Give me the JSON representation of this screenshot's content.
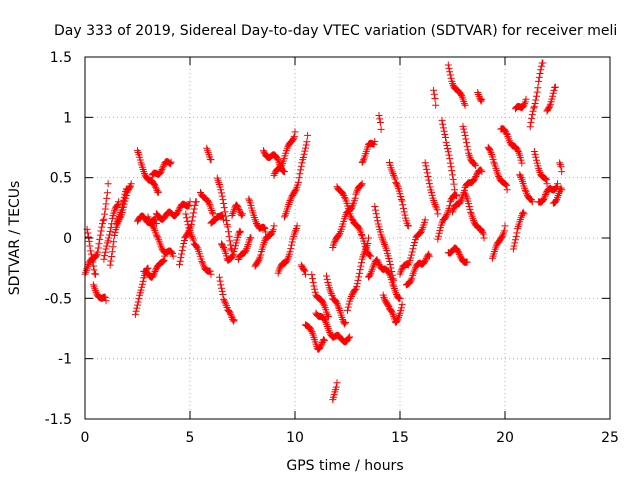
{
  "chart_data": {
    "type": "scatter",
    "title": "Day 333 of 2019, Sidereal Day-to-day VTEC variation (SDTVAR) for receiver meli",
    "xlabel": "GPS time / hours",
    "ylabel": "SDTVAR / TECUs",
    "xlim": [
      0,
      25
    ],
    "ylim": [
      -1.5,
      1.5
    ],
    "xticks": [
      0,
      5,
      10,
      15,
      20,
      25
    ],
    "yticks": [
      -1.5,
      -1,
      -0.5,
      0,
      0.5,
      1,
      1.5
    ],
    "xtick_labels": [
      "0",
      "5",
      "10",
      "15",
      "20",
      "25"
    ],
    "ytick_labels": [
      "-1.5",
      "-1",
      "-0.5",
      "0",
      "0.5",
      "1",
      "1.5"
    ],
    "grid": true,
    "marker": "+",
    "series_color": "#ff0000",
    "tracks": [
      [
        [
          0.0,
          -0.28
        ],
        [
          0.3,
          -0.2
        ],
        [
          0.6,
          -0.1
        ],
        [
          0.9,
          0.15
        ],
        [
          1.1,
          0.45
        ]
      ],
      [
        [
          0.1,
          0.05
        ],
        [
          0.3,
          -0.15
        ],
        [
          0.5,
          -0.3
        ]
      ],
      [
        [
          0.4,
          -0.4
        ],
        [
          0.6,
          -0.45
        ],
        [
          0.8,
          -0.5
        ],
        [
          1.0,
          -0.52
        ]
      ],
      [
        [
          0.9,
          -0.2
        ],
        [
          1.1,
          0.0
        ],
        [
          1.3,
          0.15
        ],
        [
          1.5,
          0.25
        ],
        [
          1.6,
          0.3
        ]
      ],
      [
        [
          1.2,
          -0.2
        ],
        [
          1.4,
          0.0
        ],
        [
          1.7,
          0.2
        ],
        [
          2.0,
          0.35
        ],
        [
          2.2,
          0.45
        ]
      ],
      [
        [
          1.5,
          0.1
        ],
        [
          1.8,
          0.3
        ],
        [
          2.0,
          0.4
        ]
      ],
      [
        [
          2.4,
          -0.65
        ],
        [
          2.6,
          -0.45
        ],
        [
          2.8,
          -0.35
        ],
        [
          3.0,
          -0.25
        ]
      ],
      [
        [
          2.5,
          0.7
        ],
        [
          2.7,
          0.6
        ],
        [
          3.0,
          0.5
        ],
        [
          3.3,
          0.42
        ],
        [
          3.5,
          0.38
        ]
      ],
      [
        [
          2.5,
          0.15
        ],
        [
          2.8,
          0.16
        ],
        [
          3.1,
          0.15
        ],
        [
          3.4,
          0.12
        ]
      ],
      [
        [
          2.8,
          -0.3
        ],
        [
          3.2,
          -0.3
        ],
        [
          3.5,
          -0.25
        ],
        [
          3.8,
          -0.15
        ]
      ],
      [
        [
          3.0,
          0.2
        ],
        [
          3.4,
          0.0
        ],
        [
          3.8,
          -0.1
        ],
        [
          4.2,
          -0.15
        ]
      ],
      [
        [
          3.2,
          0.5
        ],
        [
          3.5,
          0.55
        ],
        [
          3.8,
          0.6
        ],
        [
          4.1,
          0.63
        ]
      ],
      [
        [
          3.4,
          0.18
        ],
        [
          3.8,
          0.18
        ],
        [
          4.2,
          0.2
        ],
        [
          4.6,
          0.25
        ],
        [
          5.0,
          0.3
        ]
      ],
      [
        [
          4.5,
          -0.2
        ],
        [
          4.8,
          0.0
        ],
        [
          5.1,
          0.15
        ],
        [
          5.3,
          0.3
        ]
      ],
      [
        [
          4.8,
          0.2
        ],
        [
          5.2,
          -0.05
        ],
        [
          5.6,
          -0.2
        ],
        [
          6.0,
          -0.3
        ]
      ],
      [
        [
          5.5,
          0.4
        ],
        [
          5.8,
          0.3
        ],
        [
          6.1,
          0.2
        ]
      ],
      [
        [
          5.8,
          0.72
        ],
        [
          6.0,
          0.65
        ]
      ],
      [
        [
          6.0,
          0.1
        ],
        [
          6.3,
          0.2
        ],
        [
          6.6,
          0.15
        ]
      ],
      [
        [
          6.3,
          0.5
        ],
        [
          6.5,
          0.35
        ],
        [
          6.8,
          0.1
        ],
        [
          7.0,
          -0.1
        ]
      ],
      [
        [
          6.4,
          -0.3
        ],
        [
          6.6,
          -0.5
        ],
        [
          6.8,
          -0.62
        ],
        [
          7.1,
          -0.68
        ]
      ],
      [
        [
          6.5,
          -0.05
        ],
        [
          6.8,
          -0.2
        ],
        [
          7.1,
          -0.1
        ],
        [
          7.4,
          0.05
        ]
      ],
      [
        [
          7.0,
          0.2
        ],
        [
          7.2,
          0.25
        ],
        [
          7.5,
          0.2
        ]
      ],
      [
        [
          7.3,
          -0.2
        ],
        [
          7.6,
          -0.1
        ],
        [
          7.9,
          0.0
        ]
      ],
      [
        [
          7.8,
          0.3
        ],
        [
          8.0,
          0.2
        ],
        [
          8.3,
          0.1
        ],
        [
          8.6,
          0.05
        ]
      ],
      [
        [
          8.1,
          -0.25
        ],
        [
          8.4,
          -0.1
        ],
        [
          8.7,
          0.0
        ],
        [
          9.0,
          0.1
        ]
      ],
      [
        [
          8.5,
          0.72
        ],
        [
          8.8,
          0.68
        ],
        [
          9.2,
          0.65
        ],
        [
          9.5,
          0.55
        ]
      ],
      [
        [
          9.0,
          0.5
        ],
        [
          9.3,
          0.6
        ],
        [
          9.7,
          0.75
        ],
        [
          10.0,
          0.88
        ]
      ],
      [
        [
          9.2,
          -0.3
        ],
        [
          9.5,
          -0.2
        ],
        [
          9.8,
          -0.1
        ],
        [
          10.1,
          0.1
        ]
      ],
      [
        [
          9.5,
          0.2
        ],
        [
          9.8,
          0.3
        ],
        [
          10.2,
          0.5
        ],
        [
          10.4,
          0.65
        ],
        [
          10.6,
          0.85
        ]
      ],
      [
        [
          10.3,
          -0.2
        ],
        [
          10.5,
          -0.3
        ]
      ],
      [
        [
          10.5,
          -0.7
        ],
        [
          10.8,
          -0.8
        ],
        [
          11.1,
          -0.9
        ],
        [
          11.4,
          -0.85
        ]
      ],
      [
        [
          10.8,
          -0.3
        ],
        [
          11.0,
          -0.45
        ],
        [
          11.3,
          -0.55
        ],
        [
          11.6,
          -0.65
        ]
      ],
      [
        [
          11.0,
          -0.6
        ],
        [
          11.4,
          -0.7
        ],
        [
          11.8,
          -0.8
        ],
        [
          12.2,
          -0.85
        ],
        [
          12.6,
          -0.82
        ]
      ],
      [
        [
          11.5,
          -0.3
        ],
        [
          11.8,
          -0.5
        ],
        [
          12.1,
          -0.6
        ],
        [
          12.4,
          -0.7
        ]
      ],
      [
        [
          11.8,
          -1.33
        ],
        [
          11.9,
          -1.25
        ],
        [
          12.0,
          -1.2
        ]
      ],
      [
        [
          11.8,
          -0.1
        ],
        [
          12.1,
          0.05
        ],
        [
          12.5,
          0.2
        ],
        [
          12.9,
          0.35
        ],
        [
          13.2,
          0.45
        ]
      ],
      [
        [
          12.0,
          0.45
        ],
        [
          12.4,
          0.3
        ],
        [
          12.8,
          0.15
        ],
        [
          13.2,
          0.0
        ],
        [
          13.6,
          -0.15
        ]
      ],
      [
        [
          12.5,
          -0.6
        ],
        [
          12.9,
          -0.4
        ],
        [
          13.2,
          -0.2
        ],
        [
          13.5,
          0.0
        ]
      ],
      [
        [
          13.2,
          0.65
        ],
        [
          13.5,
          0.75
        ],
        [
          13.8,
          0.8
        ]
      ],
      [
        [
          13.5,
          -0.3
        ],
        [
          13.9,
          -0.2
        ],
        [
          14.3,
          -0.25
        ],
        [
          14.7,
          -0.4
        ],
        [
          15.0,
          -0.5
        ]
      ],
      [
        [
          13.8,
          0.25
        ],
        [
          14.1,
          0.05
        ],
        [
          14.4,
          -0.15
        ],
        [
          14.7,
          -0.35
        ]
      ],
      [
        [
          14.0,
          1.0
        ],
        [
          14.1,
          0.9
        ]
      ],
      [
        [
          14.2,
          -0.45
        ],
        [
          14.5,
          -0.6
        ],
        [
          14.8,
          -0.7
        ],
        [
          15.1,
          -0.55
        ]
      ],
      [
        [
          14.5,
          0.65
        ],
        [
          14.8,
          0.45
        ],
        [
          15.1,
          0.3
        ],
        [
          15.4,
          0.1
        ]
      ],
      [
        [
          15.0,
          -0.3
        ],
        [
          15.4,
          -0.2
        ],
        [
          15.8,
          0.0
        ],
        [
          16.2,
          0.15
        ]
      ],
      [
        [
          15.3,
          -0.4
        ],
        [
          15.6,
          -0.3
        ],
        [
          16.0,
          -0.2
        ],
        [
          16.4,
          -0.15
        ]
      ],
      [
        [
          16.2,
          0.6
        ],
        [
          16.5,
          0.4
        ],
        [
          16.8,
          0.2
        ]
      ],
      [
        [
          16.6,
          1.2
        ],
        [
          16.7,
          1.1
        ]
      ],
      [
        [
          16.8,
          0.0
        ],
        [
          17.1,
          0.15
        ],
        [
          17.4,
          0.3
        ],
        [
          17.7,
          0.35
        ]
      ],
      [
        [
          17.0,
          1.0
        ],
        [
          17.2,
          0.8
        ],
        [
          17.4,
          0.6
        ],
        [
          17.6,
          0.4
        ]
      ],
      [
        [
          17.3,
          1.42
        ],
        [
          17.5,
          1.3
        ],
        [
          17.8,
          1.2
        ],
        [
          18.1,
          1.1
        ]
      ],
      [
        [
          17.3,
          -0.1
        ],
        [
          17.6,
          -0.1
        ],
        [
          17.9,
          -0.15
        ],
        [
          18.2,
          -0.2
        ]
      ],
      [
        [
          17.5,
          0.2
        ],
        [
          17.8,
          0.3
        ],
        [
          18.1,
          0.4
        ],
        [
          18.5,
          0.5
        ],
        [
          18.9,
          0.55
        ]
      ],
      [
        [
          18.0,
          0.9
        ],
        [
          18.3,
          0.7
        ],
        [
          18.6,
          0.6
        ]
      ],
      [
        [
          18.1,
          0.35
        ],
        [
          18.4,
          0.2
        ],
        [
          18.7,
          0.1
        ],
        [
          19.0,
          0.0
        ]
      ],
      [
        [
          18.7,
          1.2
        ],
        [
          18.9,
          1.15
        ]
      ],
      [
        [
          19.2,
          0.75
        ],
        [
          19.5,
          0.6
        ],
        [
          19.8,
          0.5
        ],
        [
          20.1,
          0.4
        ]
      ],
      [
        [
          19.4,
          -0.15
        ],
        [
          19.7,
          -0.05
        ],
        [
          20.0,
          0.1
        ]
      ],
      [
        [
          19.8,
          0.9
        ],
        [
          20.1,
          0.85
        ],
        [
          20.5,
          0.75
        ],
        [
          20.8,
          0.62
        ]
      ],
      [
        [
          20.4,
          -0.1
        ],
        [
          20.6,
          0.1
        ],
        [
          20.9,
          0.2
        ]
      ],
      [
        [
          20.5,
          1.05
        ],
        [
          20.8,
          1.1
        ],
        [
          21.0,
          1.15
        ]
      ],
      [
        [
          20.7,
          0.5
        ],
        [
          21.0,
          0.4
        ],
        [
          21.3,
          0.3
        ]
      ],
      [
        [
          21.2,
          0.9
        ],
        [
          21.4,
          1.1
        ],
        [
          21.6,
          1.3
        ],
        [
          21.8,
          1.45
        ]
      ],
      [
        [
          21.4,
          0.7
        ],
        [
          21.7,
          0.55
        ],
        [
          22.0,
          0.45
        ]
      ],
      [
        [
          21.6,
          0.3
        ],
        [
          21.9,
          0.35
        ],
        [
          22.2,
          0.4
        ],
        [
          22.5,
          0.45
        ]
      ],
      [
        [
          22.0,
          1.05
        ],
        [
          22.2,
          1.15
        ],
        [
          22.4,
          1.25
        ]
      ],
      [
        [
          22.3,
          0.3
        ],
        [
          22.5,
          0.35
        ],
        [
          22.7,
          0.4
        ]
      ],
      [
        [
          22.6,
          0.6
        ],
        [
          22.7,
          0.55
        ]
      ]
    ]
  }
}
